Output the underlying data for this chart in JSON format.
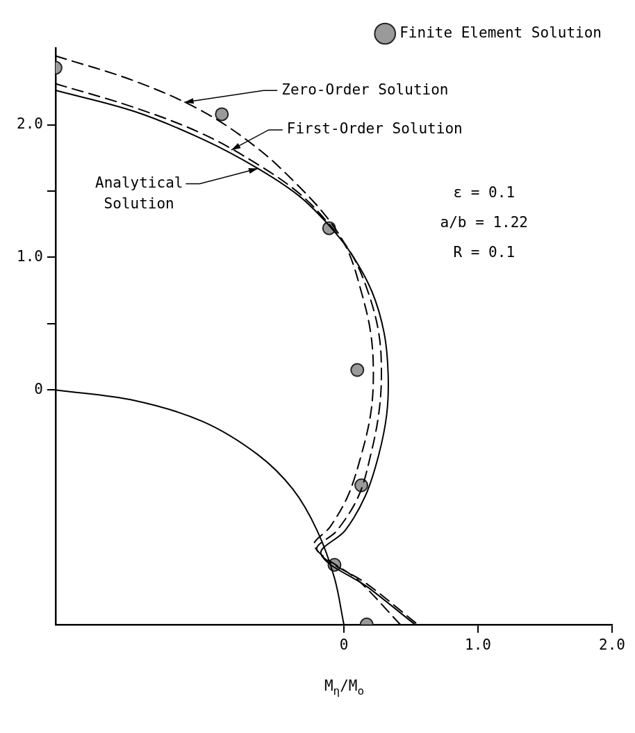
{
  "chart_data": {
    "type": "line",
    "xlabel": "M$_{η}$/M$_{o}$",
    "xlim": [
      -2.15,
      2.0
    ],
    "ylim": [
      -1.77,
      2.58
    ],
    "xticks": [
      0,
      {
        "value": 1,
        "label": "1.0"
      },
      {
        "value": 2,
        "label": "2.0"
      }
    ],
    "yticks": [
      0,
      {
        "value": 0.5,
        "label": null
      },
      {
        "value": 1,
        "label": "1.0"
      },
      {
        "value": 1.5,
        "label": null
      },
      {
        "value": 2,
        "label": "2.0"
      }
    ],
    "grid": false,
    "legend": "top right",
    "series": [
      {
        "type": "scatter",
        "name": "Finite Element Solution",
        "color": "#9a9a9a",
        "marker": "circle",
        "x": [
          -2.15,
          -0.91,
          -0.11,
          0.1,
          0.13,
          -0.07,
          0.17
        ],
        "values": [
          2.43,
          2.08,
          1.22,
          0.15,
          -0.72,
          -1.32,
          -1.77
        ]
      },
      {
        "color": "#000000",
        "line_style": "solid",
        "x": [
          -2.15,
          -1.56,
          -1.05,
          -0.64,
          -0.33,
          -0.11,
          0.06,
          0.21,
          0.3,
          0.33,
          0.32,
          0.26,
          0.16,
          0.01,
          -0.17,
          0.18,
          0.53
        ],
        "values": [
          2.26,
          2.1,
          1.89,
          1.67,
          1.46,
          1.24,
          1.02,
          0.74,
          0.43,
          0.12,
          -0.18,
          -0.49,
          -0.8,
          -1.06,
          -1.24,
          -1.49,
          -1.77
        ]
      },
      {
        "color": "#000000",
        "line_style": "dashed",
        "x": [
          -2.15,
          -1.56,
          -1.05,
          -0.64,
          -0.33,
          -0.11,
          0.06,
          0.18,
          0.26,
          0.28,
          0.26,
          0.2,
          0.11,
          -0.05,
          -0.2,
          0.18,
          0.55
        ],
        "values": [
          2.31,
          2.13,
          1.93,
          1.7,
          1.48,
          1.25,
          1.02,
          0.74,
          0.43,
          0.12,
          -0.18,
          -0.49,
          -0.8,
          -1.06,
          -1.21,
          -1.47,
          -1.77
        ]
      },
      {
        "color": "#000000",
        "line_style": "dashed",
        "x": [
          -2.15,
          -1.56,
          -1.05,
          -0.64,
          -0.33,
          -0.11,
          0.03,
          0.13,
          0.2,
          0.22,
          0.2,
          0.13,
          0.03,
          -0.1,
          -0.22,
          0.11,
          0.42
        ],
        "values": [
          2.52,
          2.33,
          2.1,
          1.82,
          1.53,
          1.28,
          1.05,
          0.74,
          0.43,
          0.12,
          -0.18,
          -0.49,
          -0.8,
          -1.03,
          -1.18,
          -1.44,
          -1.77
        ]
      },
      {
        "color": "#000000",
        "line_style": "solid",
        "x": [
          -2.15,
          -1.56,
          -1.05,
          -0.64,
          -0.38,
          -0.2,
          -0.07,
          0
        ],
        "values": [
          0,
          -0.08,
          -0.24,
          -0.49,
          -0.75,
          -1.06,
          -1.42,
          -1.77
        ]
      }
    ],
    "annotations": [
      {
        "text": "Zero-Order Solution",
        "x": -1.19,
        "y": 2.17
      },
      {
        "text": "First-Order Solution",
        "x": -0.84,
        "y": 1.81
      },
      {
        "text": "Analytical Solution",
        "x": -0.64,
        "y": 1.67
      },
      "ε = 0.1",
      "a/b = 1.22",
      "R = 0.1"
    ]
  }
}
